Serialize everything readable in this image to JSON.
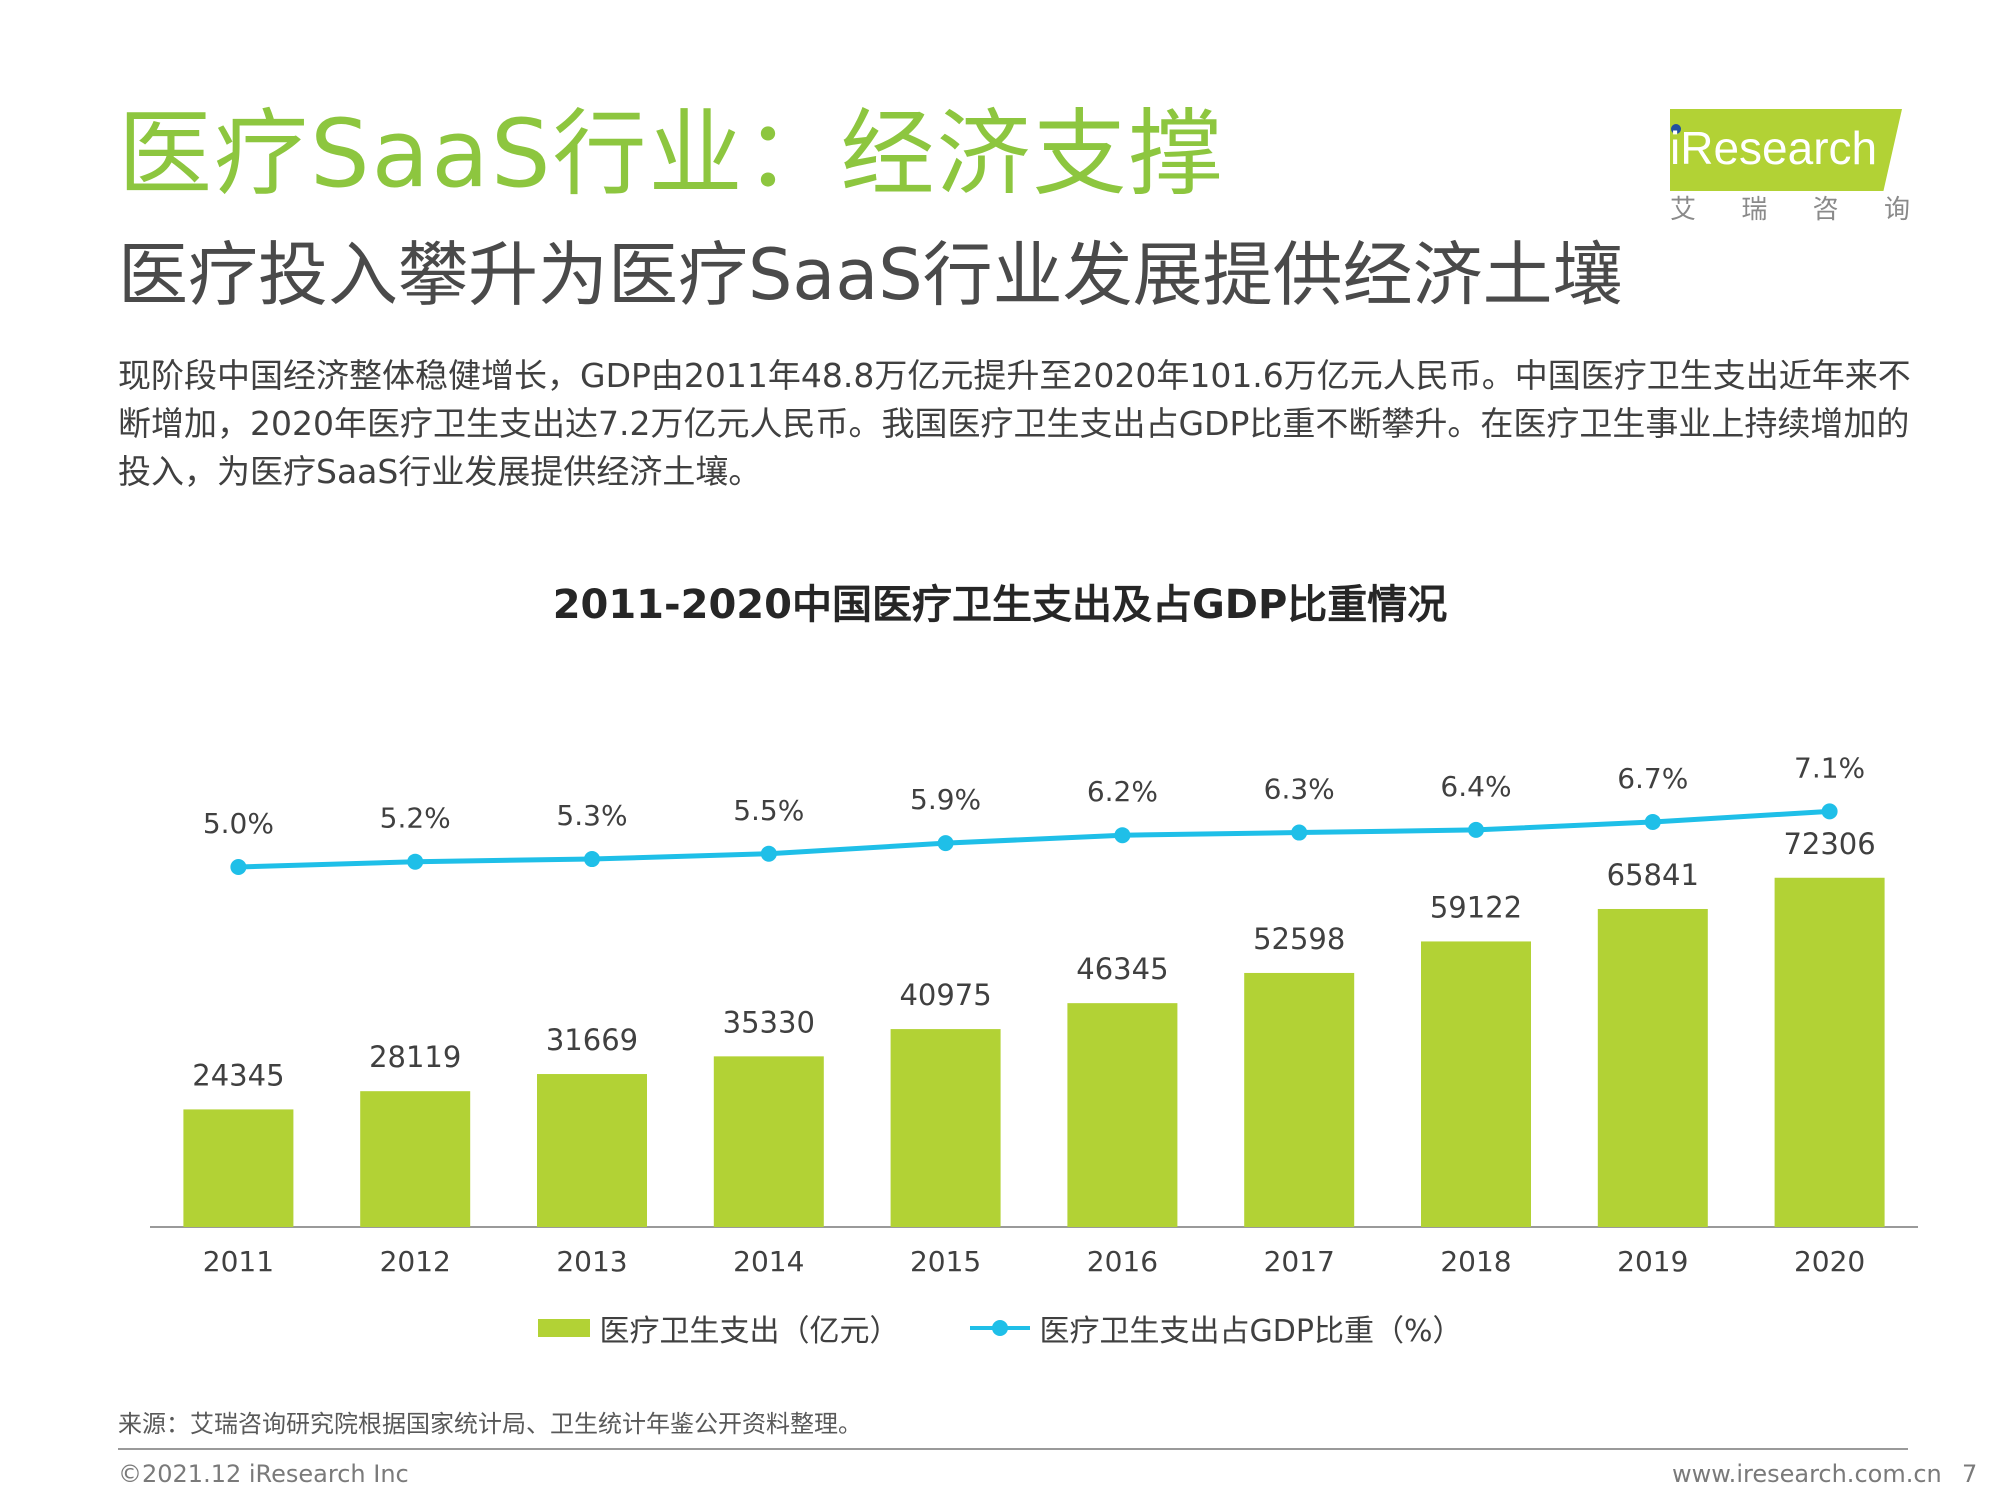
{
  "header": {
    "title": "医疗SaaS行业：经济支撑",
    "subtitle": "医疗投入攀升为医疗SaaS行业发展提供经济土壤"
  },
  "logo": {
    "name": "iResearch",
    "cn_chars": [
      "艾",
      "瑞",
      "咨",
      "询"
    ]
  },
  "intro": "现阶段中国经济整体稳健增长，GDP由2011年48.8万亿元提升至2020年101.6万亿元人民币。中国医疗卫生支出近年来不断增加，2020年医疗卫生支出达7.2万亿元人民币。我国医疗卫生支出占GDP比重不断攀升。在医疗卫生事业上持续增加的投入，为医疗SaaS行业发展提供经济土壤。",
  "chart_data": {
    "type": "bar",
    "title": "2011-2020中国医疗卫生支出及占GDP比重情况",
    "categories": [
      "2011",
      "2012",
      "2013",
      "2014",
      "2015",
      "2016",
      "2017",
      "2018",
      "2019",
      "2020"
    ],
    "series": [
      {
        "name": "医疗卫生支出（亿元）",
        "type": "bar",
        "values": [
          24345,
          28119,
          31669,
          35330,
          40975,
          46345,
          52598,
          59122,
          65841,
          72306
        ],
        "labels": [
          "24345",
          "28119",
          "31669",
          "35330",
          "40975",
          "46345",
          "52598",
          "59122",
          "65841",
          "72306"
        ]
      },
      {
        "name": "医疗卫生支出占GDP比重（%）",
        "type": "line",
        "values": [
          5.0,
          5.2,
          5.3,
          5.5,
          5.9,
          6.2,
          6.3,
          6.4,
          6.7,
          7.1
        ],
        "labels": [
          "5.0%",
          "5.2%",
          "5.3%",
          "5.5%",
          "5.9%",
          "6.2%",
          "6.3%",
          "6.4%",
          "6.7%",
          "7.1%"
        ]
      }
    ],
    "bar_color": "#b2d235",
    "line_color": "#1fbfe8",
    "legend_position": "bottom",
    "grid": false
  },
  "source": "来源：艾瑞咨询研究院根据国家统计局、卫生统计年鉴公开资料整理。",
  "footer": {
    "copyright": "©2021.12 iResearch Inc",
    "website": "www.iresearch.com.cn",
    "page": "7"
  },
  "colors": {
    "title": "#8dc63f",
    "accent": "#b2d235"
  }
}
